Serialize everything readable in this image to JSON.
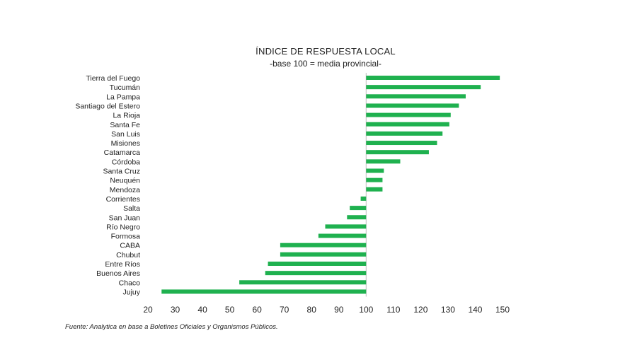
{
  "chart_data": {
    "type": "bar",
    "orientation": "horizontal",
    "title": "ÍNDICE DE RESPUESTA LOCAL",
    "subtitle": "-base 100 = media provincial-",
    "baseline": 100,
    "categories": [
      "Tierra del Fuego",
      "Tucumán",
      "La Pampa",
      "Santiago del Estero",
      "La Rioja",
      "Santa Fe",
      "San Luis",
      "Misiones",
      "Catamarca",
      "Córdoba",
      "Santa Cruz",
      "Neuquén",
      "Mendoza",
      "Corrientes",
      "Salta",
      "San Juan",
      "Río Negro",
      "Formosa",
      "CABA",
      "Chubut",
      "Entre Ríos",
      "Buenos Aires",
      "Chaco",
      "Jujuy"
    ],
    "values": [
      149,
      142,
      136.5,
      134,
      131,
      130.5,
      128,
      126,
      123,
      112.5,
      106.5,
      106,
      106,
      98,
      94,
      93,
      85,
      82.5,
      68.5,
      68.5,
      64,
      63,
      53.5,
      25
    ],
    "xlim": [
      20,
      150
    ],
    "xticks": [
      20,
      30,
      40,
      50,
      60,
      70,
      80,
      90,
      100,
      110,
      120,
      130,
      140,
      150
    ],
    "grid": false,
    "colors": {
      "bar": "#1fb14f",
      "baseline": "#bfbfbf",
      "text": "#222222"
    },
    "source": "Fuente: Analytica en base a Boletines Oficiales y Organismos Públicos."
  }
}
